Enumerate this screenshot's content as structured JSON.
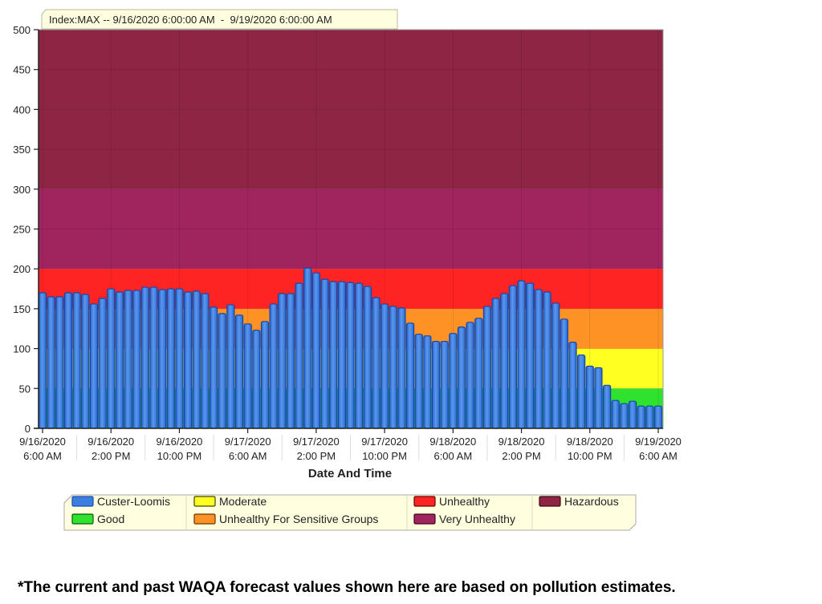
{
  "chart_data": {
    "type": "bar",
    "title": "Index:MAX -- 9/16/2020 6:00:00 AM  -  9/19/2020 6:00:00 AM",
    "xlabel": "Date And Time",
    "ylabel": "",
    "ylim": [
      0,
      500
    ],
    "yticks": [
      0,
      50,
      100,
      150,
      200,
      250,
      300,
      350,
      400,
      450,
      500
    ],
    "xtick_labels": [
      [
        "9/16/2020",
        "6:00 AM"
      ],
      [
        "9/16/2020",
        "2:00 PM"
      ],
      [
        "9/16/2020",
        "10:00 PM"
      ],
      [
        "9/17/2020",
        "6:00 AM"
      ],
      [
        "9/17/2020",
        "2:00 PM"
      ],
      [
        "9/17/2020",
        "10:00 PM"
      ],
      [
        "9/18/2020",
        "6:00 AM"
      ],
      [
        "9/18/2020",
        "2:00 PM"
      ],
      [
        "9/18/2020",
        "10:00 PM"
      ],
      [
        "9/19/2020",
        "6:00 AM"
      ]
    ],
    "xtick_every_hours": 8,
    "x_start": "9/16/2020 6:00 AM",
    "x_step": "1 hour",
    "grid": true,
    "legend_position": "bottom",
    "bands": [
      {
        "name": "Good",
        "from": 0,
        "to": 50,
        "color": "#2ee22e"
      },
      {
        "name": "Moderate",
        "from": 50,
        "to": 100,
        "color": "#ffff22"
      },
      {
        "name": "Unhealthy For Sensitive Groups",
        "from": 100,
        "to": 150,
        "color": "#ff9224"
      },
      {
        "name": "Unhealthy",
        "from": 150,
        "to": 200,
        "color": "#ff2424"
      },
      {
        "name": "Very Unhealthy",
        "from": 200,
        "to": 300,
        "color": "#a0245e"
      },
      {
        "name": "Hazardous",
        "from": 300,
        "to": 500,
        "color": "#8e2544"
      }
    ],
    "series": [
      {
        "name": "Custer-Loomis",
        "color": "#3d7fe0",
        "values": [
          170,
          165,
          165,
          170,
          170,
          168,
          156,
          163,
          175,
          171,
          173,
          173,
          177,
          177,
          174,
          175,
          175,
          171,
          172,
          169,
          152,
          144,
          155,
          142,
          131,
          123,
          134,
          156,
          169,
          169,
          182,
          201,
          195,
          187,
          184,
          184,
          183,
          182,
          178,
          164,
          156,
          153,
          151,
          132,
          118,
          116,
          109,
          109,
          119,
          127,
          133,
          138,
          153,
          163,
          169,
          179,
          185,
          182,
          174,
          171,
          157,
          137,
          108,
          92,
          78,
          76,
          54,
          35,
          31,
          34,
          28,
          28,
          28
        ]
      }
    ]
  },
  "legend": {
    "items": [
      {
        "label": "Custer-Loomis",
        "color": "#3d7fe0",
        "border": "#1a4fa8"
      },
      {
        "label": "Good",
        "color": "#2ee22e",
        "border": "#0b5a0b"
      },
      {
        "label": "Moderate",
        "color": "#ffff22",
        "border": "#444400"
      },
      {
        "label": "Unhealthy For Sensitive Groups",
        "color": "#ff9224",
        "border": "#6a3400"
      },
      {
        "label": "Unhealthy",
        "color": "#ff2424",
        "border": "#6a0000"
      },
      {
        "label": "Very Unhealthy",
        "color": "#a0245e",
        "border": "#40081e"
      },
      {
        "label": "Hazardous",
        "color": "#8e2544",
        "border": "#3a0a18"
      }
    ]
  },
  "footnote": "*The current and past WAQA forecast values shown here are based on pollution estimates."
}
